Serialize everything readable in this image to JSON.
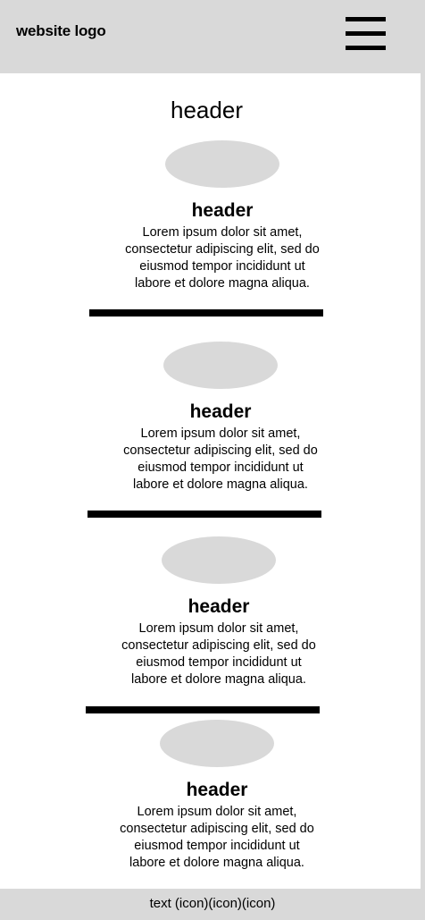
{
  "topbar": {
    "logo": "website logo",
    "menu_icon": "hamburger-menu-icon"
  },
  "main": {
    "title": "header",
    "cards": [
      {
        "title": "header",
        "lines": [
          "Lorem ipsum dolor sit amet,",
          "consectetur adipiscing elit, sed do",
          "eiusmod tempor incididunt ut",
          "labore et dolore magna aliqua."
        ]
      },
      {
        "title": "header",
        "lines": [
          "Lorem ipsum dolor sit amet,",
          "consectetur adipiscing elit, sed do",
          "eiusmod tempor incididunt ut",
          "labore et dolore magna aliqua."
        ]
      },
      {
        "title": "header",
        "lines": [
          "Lorem ipsum dolor sit amet,",
          "consectetur adipiscing elit, sed do",
          "eiusmod tempor incididunt ut",
          "labore et dolore magna aliqua."
        ]
      },
      {
        "title": "header",
        "lines": [
          "Lorem ipsum dolor sit amet,",
          "consectetur adipiscing elit, sed do",
          "eiusmod tempor incididunt ut",
          "labore et dolore magna aliqua."
        ]
      }
    ]
  },
  "footer": {
    "text": "text (icon)(icon)(icon)"
  },
  "colors": {
    "placeholder_gray": "#d9d9d9",
    "divider": "#000000",
    "background": "#ffffff"
  }
}
